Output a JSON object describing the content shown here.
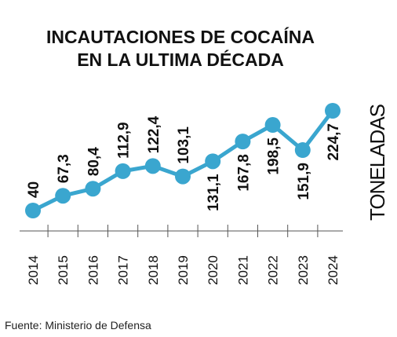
{
  "title_line1": "INCAUTACIONES DE COCAÍNA",
  "title_line2": "EN LA ULTIMA DÉCADA",
  "source": "Fuente: Ministerio de Defensa",
  "colors": {
    "line": "#3aa6cf",
    "marker": "#3aa6cf",
    "text": "#111111"
  },
  "chart_data": {
    "type": "line",
    "title": "INCAUTACIONES DE COCAÍNA EN LA ULTIMA DÉCADA",
    "xlabel": "",
    "ylabel": "TONELADAS",
    "categories": [
      "2014",
      "2015",
      "2016",
      "2017",
      "2018",
      "2019",
      "2020",
      "2021",
      "2022",
      "2023",
      "2024"
    ],
    "series": [
      {
        "values": [
          40,
          67.3,
          80.4,
          112.9,
          122.4,
          103.1,
          131.1,
          167.8,
          198.5,
          151.9,
          224.7
        ],
        "labels": [
          "40",
          "67,3",
          "80,4",
          "112,9",
          "122,4",
          "103,1",
          "131,1",
          "167,8",
          "198,5",
          "151,9",
          "224,7"
        ],
        "label_position": [
          "above",
          "above",
          "above",
          "above",
          "above",
          "above",
          "below",
          "below",
          "below",
          "below",
          "below"
        ]
      }
    ],
    "ylim": [
      0,
      240
    ],
    "grid": false,
    "legend": "none"
  }
}
